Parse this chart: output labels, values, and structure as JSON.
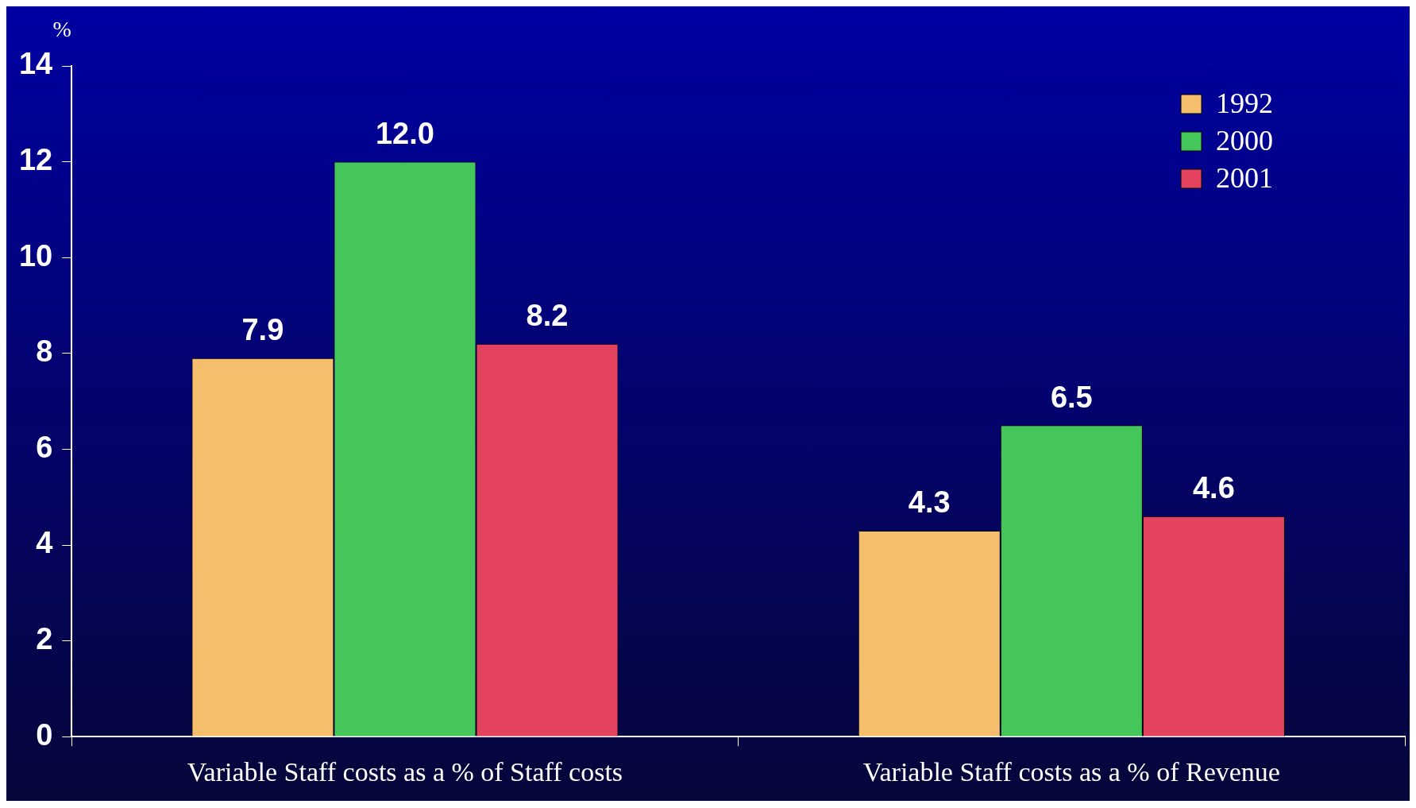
{
  "chart_data": {
    "type": "bar",
    "ylabel": "%",
    "categories": [
      "Variable Staff costs as a % of Staff costs",
      "Variable Staff costs as a % of Revenue"
    ],
    "series": [
      {
        "name": "1992",
        "color": "#f4be6c",
        "values": [
          7.9,
          4.3
        ]
      },
      {
        "name": "2000",
        "color": "#45c65a",
        "values": [
          12.0,
          6.5
        ]
      },
      {
        "name": "2001",
        "color": "#e3435e",
        "values": [
          8.2,
          4.6
        ]
      }
    ],
    "value_labels": [
      [
        "7.9",
        "4.3"
      ],
      [
        "12.0",
        "6.5"
      ],
      [
        "8.2",
        "4.6"
      ]
    ],
    "ylim": [
      0,
      14
    ],
    "yticks": [
      0,
      2,
      4,
      6,
      8,
      10,
      12,
      14
    ],
    "grid": false,
    "legend": "top right"
  }
}
